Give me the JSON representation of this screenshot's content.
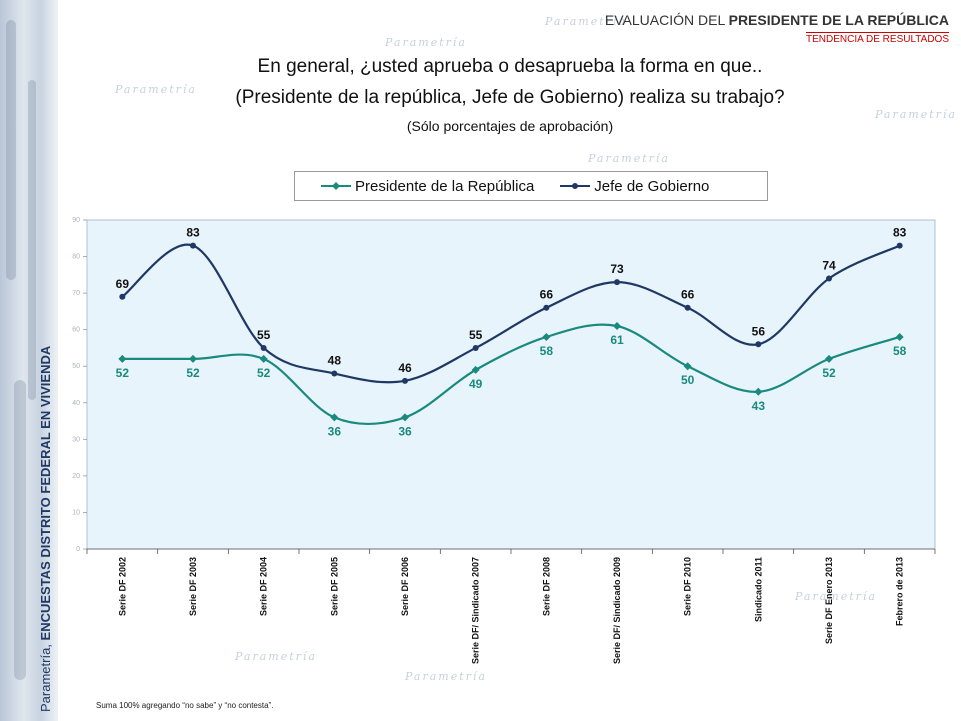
{
  "header": {
    "title_prefix": "EVALUACIÓN DEL ",
    "title_bold": "PRESIDENTE DE LA REPÚBLICA",
    "subtitle": "TENDENCIA DE RESULTADOS"
  },
  "question": {
    "line1": "En general, ¿usted aprueba o desaprueba la forma en que..",
    "line2": "(Presidente de la república, Jefe de Gobierno) realiza su trabajo?",
    "line3": "(Sólo porcentajes de aprobación)"
  },
  "side_label": {
    "prefix": "Parametría, ",
    "bold": "ENCUESTAS DISTRITO FEDERAL EN VIVIENDA"
  },
  "footnote": "Suma 100%  agregando “no sabe” y “no contesta”.",
  "watermark_text": "Parametría",
  "chart_data": {
    "type": "line",
    "ylim": [
      0,
      90
    ],
    "yticks": [
      0,
      10,
      20,
      30,
      40,
      50,
      60,
      70,
      80,
      90
    ],
    "grid": false,
    "legend_position": "top",
    "categories": [
      "Serie DF 2002",
      "Serie DF 2003",
      "Serie DF 2004",
      "Serie DF 2005",
      "Serie DF 2006",
      "Serie DF/ Sindicado 2007",
      "Serie DF 2008",
      "Serie DF/ Sindicado 2009",
      "Serie DF 2010",
      "Sindicado 2011",
      "Serie DF Enero 2013",
      "Febrero de 2013"
    ],
    "series": [
      {
        "name": "Presidente de la República",
        "color": "#1a8a7e",
        "marker": "diamond",
        "values": [
          52,
          52,
          52,
          36,
          36,
          49,
          58,
          61,
          50,
          43,
          52,
          58
        ]
      },
      {
        "name": "Jefe de Gobierno",
        "color": "#1f3864",
        "marker": "circle",
        "values": [
          69,
          83,
          55,
          48,
          46,
          55,
          66,
          73,
          66,
          56,
          74,
          83
        ]
      }
    ]
  }
}
